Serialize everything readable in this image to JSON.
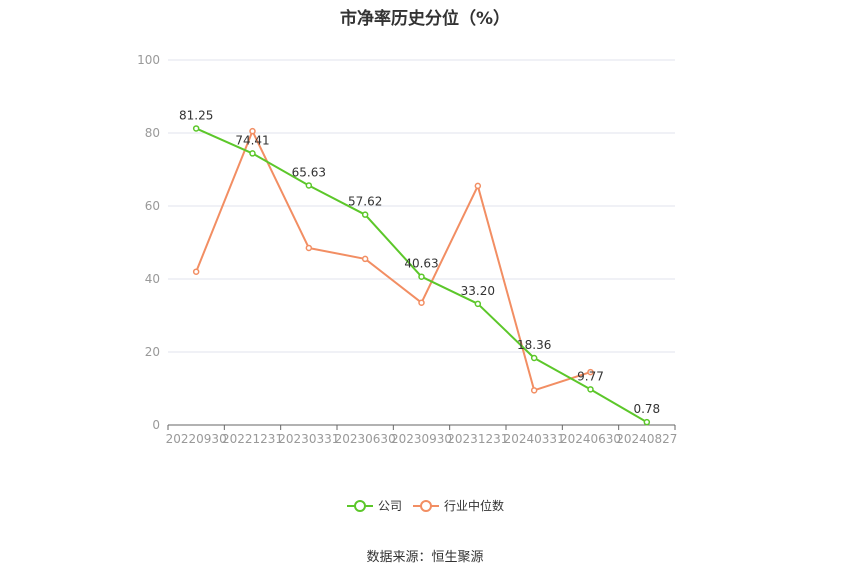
{
  "chart_data": {
    "type": "line",
    "title": "市净率历史分位（%）",
    "categories": [
      "20220930",
      "20221231",
      "20230331",
      "20230630",
      "20230930",
      "20231231",
      "20240331",
      "20240630",
      "20240827"
    ],
    "series": [
      {
        "name": "公司",
        "color": "#5cc72a",
        "values": [
          81.25,
          74.41,
          65.63,
          57.62,
          40.63,
          33.2,
          18.36,
          9.77,
          0.78
        ],
        "labels": [
          "81.25",
          "74.41",
          "65.63",
          "57.62",
          "40.63",
          "33.20",
          "18.36",
          "9.77",
          "0.78"
        ]
      },
      {
        "name": "行业中位数",
        "color": "#f28e63",
        "values": [
          42,
          80.5,
          48.5,
          45.5,
          33.5,
          65.5,
          9.5,
          14.5,
          null
        ]
      }
    ],
    "ylim": [
      0,
      100
    ],
    "yticks": [
      0,
      20,
      40,
      60,
      80,
      100
    ],
    "grid": true,
    "legend_position": "bottom"
  },
  "source": "数据来源：恒生聚源"
}
